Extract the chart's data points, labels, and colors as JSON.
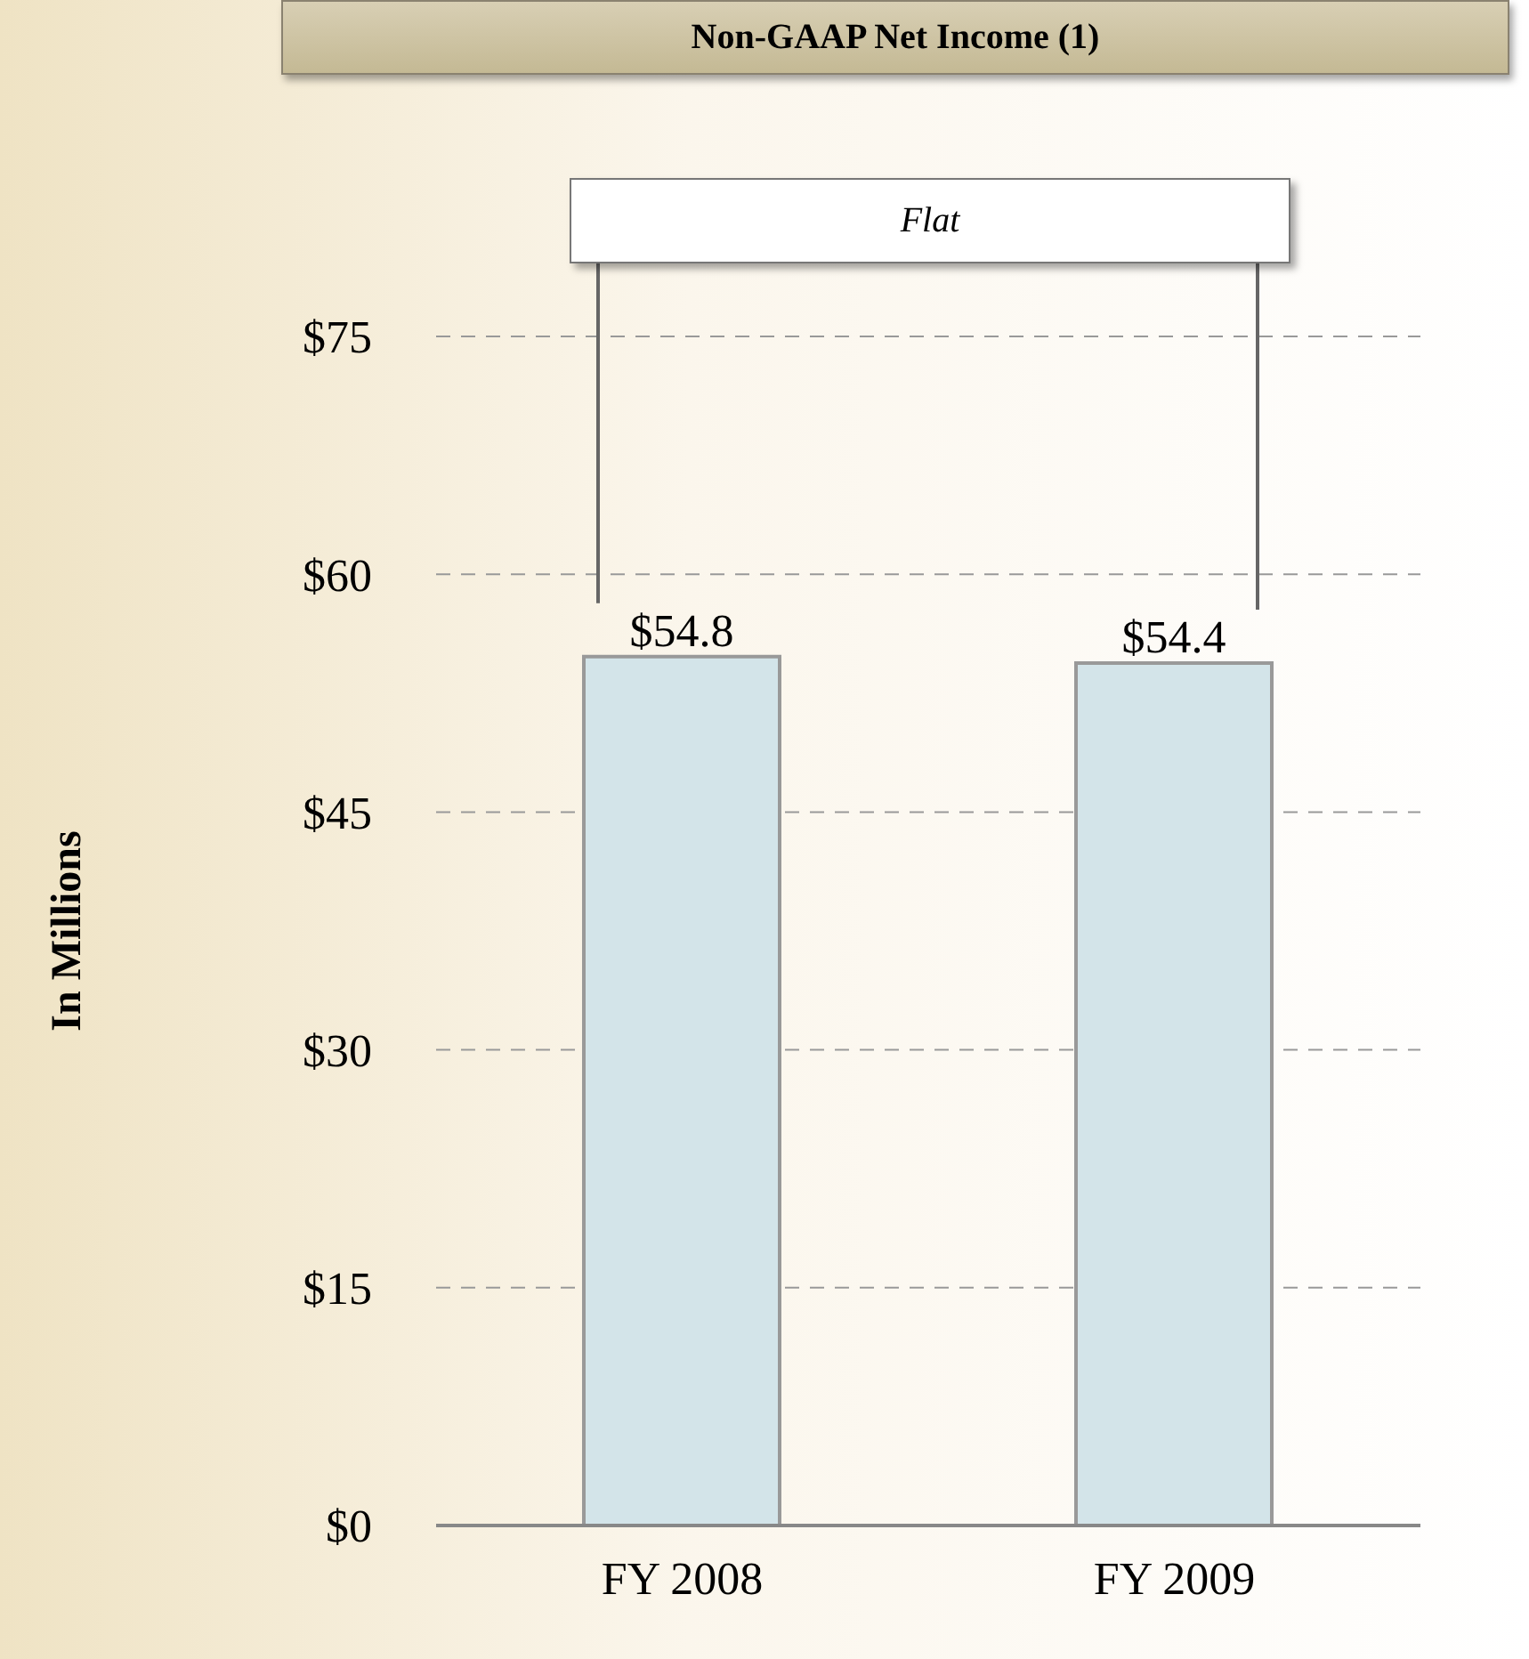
{
  "chart_data": {
    "type": "bar",
    "title": "Non-GAAP Net Income (1)",
    "ylabel": "In Millions",
    "categories": [
      "FY 2008",
      "FY 2009"
    ],
    "values": [
      54.8,
      54.4
    ],
    "value_labels": [
      "$54.8",
      "$54.4"
    ],
    "color": "#d3e4e9",
    "ylim": [
      0,
      75
    ],
    "yticks": [
      {
        "value": 0,
        "label": "$0"
      },
      {
        "value": 15,
        "label": "$15"
      },
      {
        "value": 30,
        "label": "$30"
      },
      {
        "value": 45,
        "label": "$45"
      },
      {
        "value": 60,
        "label": "$60"
      },
      {
        "value": 75,
        "label": "$75"
      }
    ],
    "grid": "y",
    "annotations": [
      "Flat"
    ]
  }
}
